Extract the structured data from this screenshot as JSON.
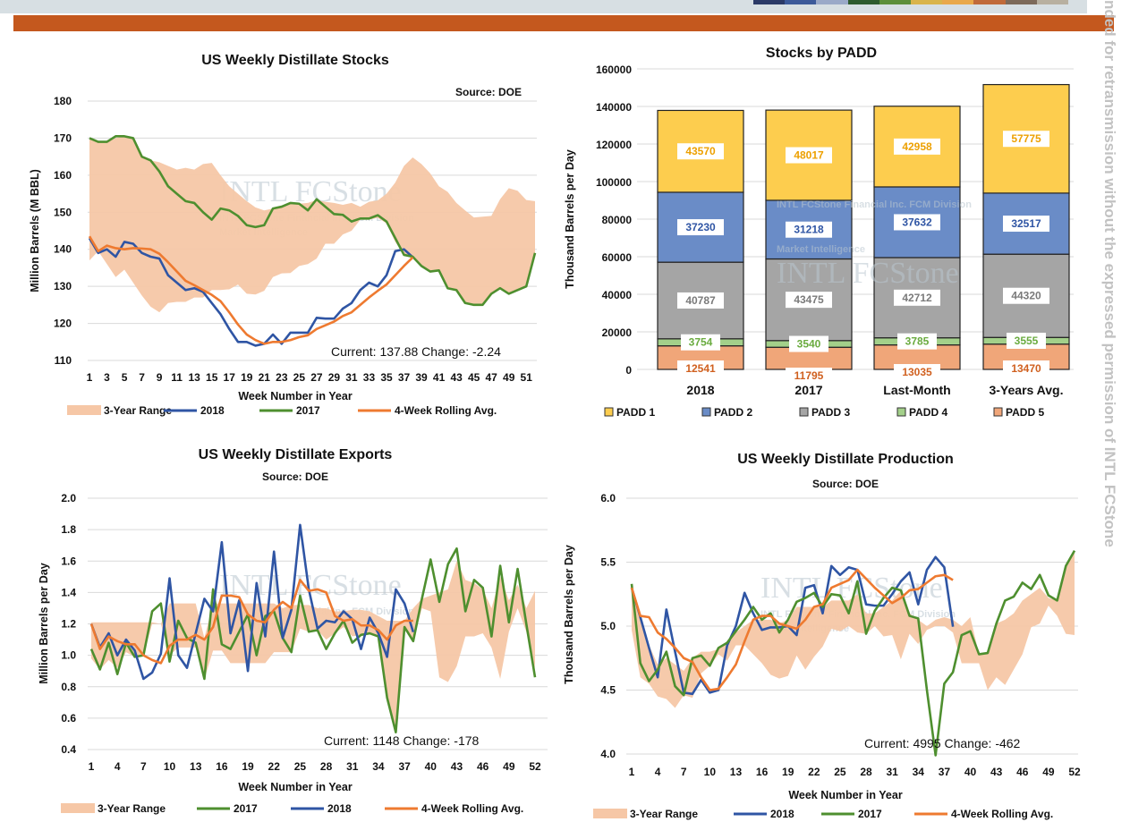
{
  "header": {
    "side_note": "nded for retransmission without the expressed permission of INTL FCStone"
  },
  "watermark": {
    "logo": "INTL FCStone",
    "line1": "INTL FCStone Financial Inc. FCM Division",
    "line2": "Market Intelligence"
  },
  "colors": {
    "range": "#f6c7a6",
    "y2018": "#2f55a4",
    "y2017": "#4e8f2f",
    "avg": "#ee7a30",
    "band": "#c4581e"
  },
  "chart_data": [
    {
      "type": "line",
      "title": "US Weekly Distillate Stocks",
      "source": "Source: DOE",
      "xlabel": "Week Number in Year",
      "ylabel": "Million Barrels (M BBL)",
      "ylim": [
        110,
        180
      ],
      "ystep": 10,
      "ydecimals": 0,
      "xticks": [
        1,
        3,
        5,
        7,
        9,
        11,
        13,
        15,
        17,
        19,
        21,
        23,
        25,
        27,
        29,
        31,
        33,
        35,
        37,
        39,
        41,
        43,
        45,
        47,
        49,
        51
      ],
      "annotation": "Current: 137.88   Change: -2.24",
      "grid": true,
      "legend": "bottom",
      "legend_order": [
        "3-Year Range",
        "2018",
        "2017",
        "4-Week Rolling Avg."
      ],
      "range": {
        "name": "3-Year Range",
        "low": [
          137,
          139.5,
          136,
          132.5,
          134.5,
          131,
          127.5,
          124.5,
          123,
          125.5,
          125.8,
          125.8,
          127,
          127,
          129,
          129,
          129.2,
          130.5,
          128,
          127.8,
          128.8,
          132.5,
          133.5,
          133.6,
          135.5,
          136,
          137.5,
          141.5,
          141.5,
          144,
          145,
          148,
          148,
          148.5,
          147,
          142,
          138.5,
          138,
          135.5,
          134,
          134.3,
          129.5,
          129,
          125.5,
          125,
          125,
          128,
          129.5,
          128,
          129,
          130,
          138
        ],
        "high": [
          170,
          169,
          169,
          170,
          170.5,
          170,
          165,
          164,
          163.5,
          162.5,
          161.5,
          162,
          161.5,
          163,
          163.3,
          160,
          157,
          155,
          153,
          151.3,
          150.5,
          151,
          151.5,
          152.5,
          152.3,
          152.5,
          153.3,
          152.8,
          152.5,
          152,
          152.5,
          151.5,
          152.8,
          153.2,
          155,
          158,
          162.5,
          164.8,
          163,
          160.5,
          157,
          155.5,
          152.5,
          150.5,
          148.6,
          148.8,
          149,
          153.5,
          156.5,
          155.8,
          153.3,
          153
        ]
      },
      "series": [
        {
          "name": "2018",
          "color": "#2f55a4",
          "values": [
            143,
            139,
            140,
            138,
            142,
            141.5,
            139,
            138,
            137.5,
            133,
            131,
            129,
            129.5,
            128.5,
            125.5,
            122.5,
            118.5,
            115,
            115,
            114,
            114.5,
            117,
            114.5,
            117.5,
            117.5,
            117.5,
            121.5,
            121.3,
            121.3,
            124,
            125.5,
            129,
            131,
            130,
            133,
            139.5,
            140,
            137.88
          ]
        },
        {
          "name": "2017",
          "color": "#4e8f2f",
          "values": [
            170,
            169,
            169,
            170.5,
            170.5,
            170,
            165,
            164,
            161,
            157,
            155,
            153,
            152.5,
            150,
            148,
            151,
            150.5,
            149,
            146.5,
            146,
            146.5,
            151,
            151.5,
            152.5,
            152.3,
            150.5,
            153.5,
            151.5,
            149.5,
            149.3,
            147.5,
            148.3,
            148.3,
            149.2,
            147.5,
            143,
            138.5,
            138,
            135.5,
            134,
            134.3,
            129.5,
            129,
            125.5,
            125,
            125,
            128,
            129.5,
            128,
            129,
            130,
            139
          ]
        },
        {
          "name": "4-Week Rolling Avg.",
          "color": "#ee7a30",
          "values": [
            143.5,
            139.5,
            141,
            140.3,
            140,
            140.3,
            140.2,
            140,
            138.8,
            136.5,
            134,
            131.5,
            130.3,
            129,
            127.7,
            126,
            123,
            119.7,
            117,
            115.5,
            114.5,
            115,
            115,
            115.5,
            116.3,
            116.8,
            118.5,
            119.5,
            120.5,
            122,
            123,
            125,
            127,
            128.8,
            130.5,
            133,
            135.5,
            137.8
          ]
        }
      ]
    },
    {
      "type": "bar",
      "stacked": true,
      "title": "Stocks by PADD",
      "ylabel": "Thousand Barrels per Day",
      "ylim": [
        0,
        160000
      ],
      "ystep": 20000,
      "categories": [
        "2018",
        "2017",
        "Last-Month",
        "3-Years Avg."
      ],
      "grid": true,
      "legend": "bottom",
      "series": [
        {
          "name": "PADD 5",
          "color": "#f0a679",
          "label_color": "#d0601f",
          "values": [
            12541,
            11795,
            13035,
            13470
          ]
        },
        {
          "name": "PADD 4",
          "color": "#a3d08a",
          "label_color": "#6aab3f",
          "values": [
            3754,
            3540,
            3785,
            3555
          ]
        },
        {
          "name": "PADD 3",
          "color": "#a5a5a5",
          "label_color": "#7a7a7a",
          "values": [
            40787,
            43475,
            42712,
            44320
          ]
        },
        {
          "name": "PADD 2",
          "color": "#6a8cc7",
          "label_color": "#2f55a4",
          "values": [
            37230,
            31218,
            37632,
            32517
          ]
        },
        {
          "name": "PADD 1",
          "color": "#fdcd4e",
          "label_color": "#eda000",
          "values": [
            43570,
            48017,
            42958,
            57775
          ]
        }
      ],
      "legend_order": [
        "PADD 1",
        "PADD 2",
        "PADD 3",
        "PADD 4",
        "PADD 5"
      ]
    },
    {
      "type": "line",
      "title": "US Weekly Distillate Exports",
      "source": "Source: DOE",
      "xlabel": "Week Number in Year",
      "ylabel": "Million Barrels per Day",
      "ylim": [
        0.4,
        2.0
      ],
      "ystep": 0.2,
      "ydecimals": 1,
      "xticks": [
        1,
        4,
        7,
        10,
        13,
        16,
        19,
        22,
        25,
        28,
        31,
        34,
        37,
        40,
        43,
        46,
        49,
        52
      ],
      "annotation": "Current: 1148   Change: -178",
      "grid": true,
      "legend": "bottom",
      "legend_order": [
        "3-Year Range",
        "2017",
        "2018",
        "4-Week Rolling Avg."
      ],
      "range": {
        "name": "3-Year Range",
        "low": [
          0.98,
          0.91,
          0.97,
          0.92,
          1.02,
          0.99,
          1.0,
          1.2,
          1.2,
          1.0,
          1.05,
          1.05,
          1.05,
          0.85,
          1.03,
          1.03,
          0.95,
          0.95,
          0.95,
          0.95,
          0.95,
          1.02,
          1.02,
          1.02,
          1.17,
          1.15,
          1.16,
          1.1,
          1.14,
          1.18,
          1.12,
          1.13,
          1.14,
          1.12,
          0.75,
          0.51,
          1.18,
          1.09,
          1.3,
          1.28,
          0.86,
          0.83,
          0.93,
          1.12,
          1.12,
          1.14,
          1.05,
          0.85,
          1.15,
          1.3,
          1.15,
          0.92
        ],
        "high": [
          1.21,
          1.21,
          1.21,
          1.21,
          1.21,
          1.21,
          1.21,
          1.21,
          1.2,
          1.33,
          1.33,
          1.33,
          1.33,
          1.11,
          1.33,
          1.33,
          1.33,
          1.33,
          1.33,
          1.33,
          1.33,
          1.33,
          1.3,
          1.32,
          1.32,
          1.32,
          1.3,
          1.3,
          1.28,
          1.28,
          1.29,
          1.29,
          1.28,
          1.25,
          1.22,
          1.22,
          1.22,
          1.3,
          1.36,
          1.38,
          1.4,
          1.42,
          1.6,
          1.48,
          1.46,
          1.42,
          1.3,
          1.5,
          1.35,
          1.45,
          1.3,
          1.41
        ]
      },
      "series": [
        {
          "name": "2017",
          "color": "#4e8f2f",
          "values": [
            1.04,
            0.91,
            1.08,
            0.88,
            1.08,
            0.99,
            1.0,
            1.28,
            1.33,
            0.96,
            1.22,
            1.11,
            1.08,
            0.85,
            1.42,
            1.07,
            1.04,
            1.15,
            1.26,
            1.0,
            1.25,
            1.28,
            1.11,
            1.02,
            1.38,
            1.15,
            1.16,
            1.04,
            1.14,
            1.22,
            1.08,
            1.13,
            1.14,
            1.12,
            0.73,
            0.51,
            1.18,
            1.09,
            1.36,
            1.61,
            1.34,
            1.58,
            1.68,
            1.28,
            1.48,
            1.43,
            1.12,
            1.57,
            1.21,
            1.55,
            1.2,
            0.86
          ]
        },
        {
          "name": "2018",
          "color": "#2f55a4",
          "values": [
            1.2,
            1.05,
            1.14,
            1.0,
            1.1,
            1.03,
            0.85,
            0.89,
            1.01,
            1.49,
            1.0,
            0.92,
            1.14,
            1.36,
            1.28,
            1.72,
            1.14,
            1.35,
            0.9,
            1.46,
            1.12,
            1.66,
            1.11,
            1.29,
            1.83,
            1.42,
            1.17,
            1.22,
            1.21,
            1.28,
            1.23,
            1.04,
            1.24,
            1.14,
            0.99,
            1.42,
            1.33,
            1.148
          ]
        },
        {
          "name": "4-Week Rolling Avg.",
          "color": "#ee7a30",
          "values": [
            1.2,
            1.04,
            1.12,
            1.09,
            1.07,
            1.07,
            1.0,
            0.97,
            0.95,
            1.06,
            1.1,
            1.1,
            1.13,
            1.1,
            1.18,
            1.38,
            1.38,
            1.37,
            1.26,
            1.22,
            1.21,
            1.29,
            1.34,
            1.3,
            1.48,
            1.41,
            1.42,
            1.4,
            1.25,
            1.22,
            1.23,
            1.19,
            1.19,
            1.16,
            1.1,
            1.19,
            1.22,
            1.22
          ]
        }
      ]
    },
    {
      "type": "line",
      "title": "US Weekly Distillate Production",
      "source": "Source: DOE",
      "xlabel": "Week Number in Year",
      "ylabel": "Thousand Barrels per Day",
      "ylim": [
        4.0,
        6.0
      ],
      "ystep": 0.5,
      "ydecimals": 1,
      "xticks": [
        1,
        4,
        7,
        10,
        13,
        16,
        19,
        22,
        25,
        28,
        31,
        34,
        37,
        40,
        43,
        46,
        49,
        52
      ],
      "annotation": "Current: 4995   Change: -462",
      "grid": true,
      "legend": "bottom",
      "legend_order": [
        "3-Year Range",
        "2018",
        "2017",
        "4-Week Rolling Avg."
      ],
      "range": {
        "name": "3-Year Range",
        "low": [
          4.97,
          4.6,
          4.55,
          4.45,
          4.43,
          4.36,
          4.46,
          4.44,
          4.63,
          4.69,
          4.78,
          4.73,
          4.85,
          4.85,
          4.78,
          4.71,
          4.62,
          4.59,
          4.61,
          4.77,
          4.66,
          4.76,
          4.84,
          4.98,
          4.96,
          5.0,
          4.95,
          4.94,
          5.0,
          4.92,
          4.93,
          4.74,
          4.94,
          4.86,
          4.97,
          5.0,
          5.0,
          4.95,
          4.71,
          4.71,
          4.71,
          4.5,
          4.6,
          4.54,
          4.66,
          4.78,
          4.99,
          5.02,
          5.16,
          5.08,
          4.94,
          4.93
        ],
        "high": [
          5.3,
          5.05,
          4.85,
          4.7,
          4.75,
          4.7,
          4.65,
          4.75,
          4.8,
          4.8,
          4.82,
          4.87,
          4.95,
          5.0,
          5.05,
          5.05,
          5.05,
          5.02,
          5.05,
          5.15,
          5.15,
          5.15,
          5.15,
          5.2,
          5.2,
          5.2,
          5.25,
          5.1,
          5.1,
          5.15,
          5.2,
          5.28,
          5.1,
          5.05,
          5.0,
          5.05,
          5.07,
          5.05,
          5.0,
          5.07,
          4.78,
          4.79,
          5.02,
          5.05,
          5.1,
          5.2,
          5.25,
          5.3,
          5.22,
          5.2,
          5.45,
          5.59
        ]
      },
      "series": [
        {
          "name": "2018",
          "color": "#2f55a4",
          "values": [
            5.3,
            5.07,
            4.83,
            4.6,
            5.13,
            4.8,
            4.48,
            4.47,
            4.58,
            4.48,
            4.5,
            4.85,
            5.0,
            5.26,
            5.1,
            4.97,
            4.99,
            4.99,
            5.0,
            4.93,
            5.3,
            5.32,
            5.1,
            5.47,
            5.4,
            5.46,
            5.44,
            5.17,
            5.16,
            5.16,
            5.25,
            5.35,
            5.42,
            5.17,
            5.44,
            5.54,
            5.46,
            4.995
          ]
        },
        {
          "name": "2017",
          "color": "#4e8f2f",
          "values": [
            5.33,
            4.71,
            4.57,
            4.66,
            4.8,
            4.53,
            4.46,
            4.75,
            4.77,
            4.69,
            4.83,
            4.87,
            4.96,
            5.05,
            5.15,
            5.05,
            5.1,
            4.95,
            5.05,
            5.19,
            5.22,
            5.26,
            5.15,
            5.25,
            5.24,
            5.1,
            5.35,
            4.94,
            5.12,
            5.22,
            5.3,
            5.28,
            5.08,
            5.06,
            4.5,
            3.99,
            4.55,
            4.64,
            4.93,
            4.96,
            4.78,
            4.79,
            5.02,
            5.2,
            5.23,
            5.34,
            5.29,
            5.4,
            5.24,
            5.2,
            5.47,
            5.59
          ]
        },
        {
          "name": "4-Week Rolling Avg.",
          "color": "#ee7a30",
          "values": [
            5.3,
            5.08,
            5.07,
            4.95,
            4.9,
            4.83,
            4.75,
            4.72,
            4.6,
            4.5,
            4.51,
            4.6,
            4.7,
            4.88,
            5.05,
            5.08,
            5.08,
            5.02,
            5.0,
            4.98,
            5.05,
            5.15,
            5.17,
            5.3,
            5.33,
            5.36,
            5.44,
            5.37,
            5.3,
            5.24,
            5.18,
            5.22,
            5.28,
            5.29,
            5.34,
            5.39,
            5.4,
            5.36
          ]
        }
      ]
    }
  ]
}
